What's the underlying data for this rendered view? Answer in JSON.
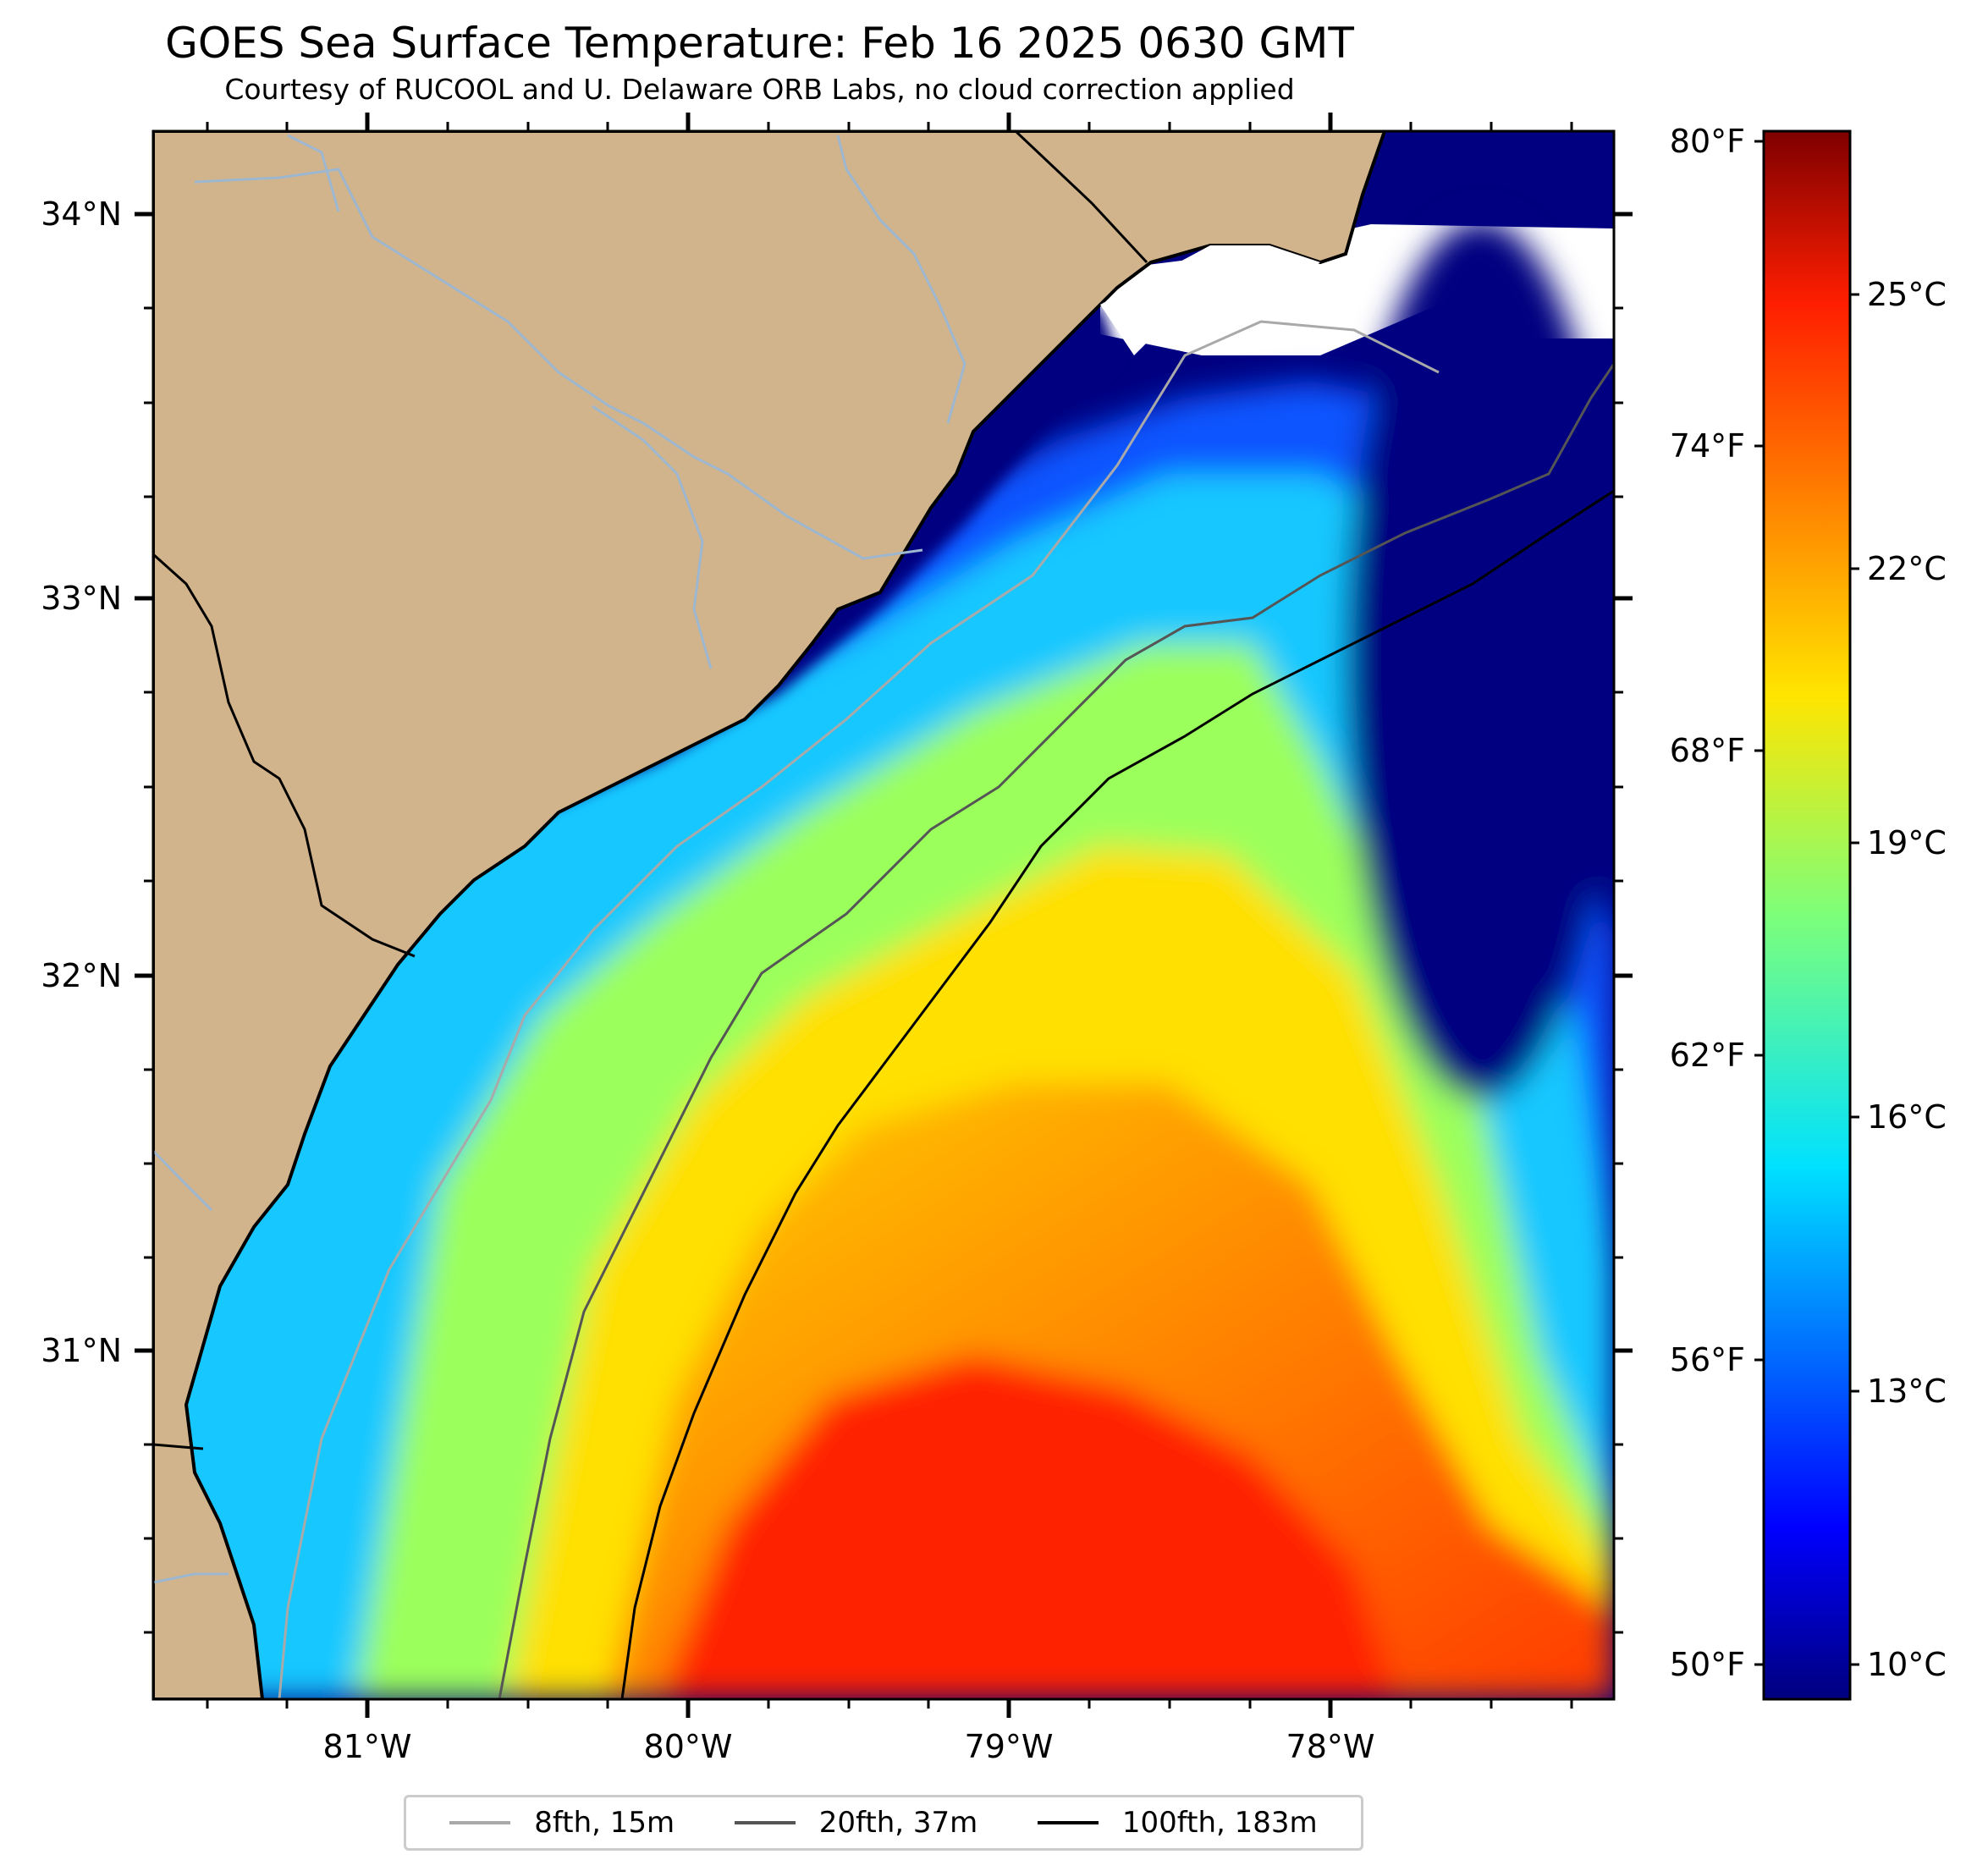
{
  "title": "GOES Sea Surface Temperature: Feb 16 2025 0630 GMT",
  "subtitle": "Courtesy of RUCOOL and U. Delaware ORB Labs, no cloud correction applied",
  "map": {
    "lat_labels": [
      "34°N",
      "33°N",
      "32°N",
      "31°N"
    ],
    "lon_labels": [
      "81°W",
      "80°W",
      "79°W",
      "78°W"
    ],
    "land_color": "#d2b48c",
    "colormap": "jet"
  },
  "colorbar": {
    "fahrenheit_labels": [
      "80°F",
      "74°F",
      "68°F",
      "62°F",
      "56°F",
      "50°F"
    ],
    "celsius_labels": [
      "25°C",
      "22°C",
      "19°C",
      "16°C",
      "13°C",
      "10°C"
    ],
    "range_c": [
      9.5,
      27
    ]
  },
  "legend": [
    {
      "label": "8fth, 15m",
      "color": "#a9a9a9"
    },
    {
      "label": "20fth, 37m",
      "color": "#555555"
    },
    {
      "label": "100fth, 183m",
      "color": "#000000"
    }
  ]
}
